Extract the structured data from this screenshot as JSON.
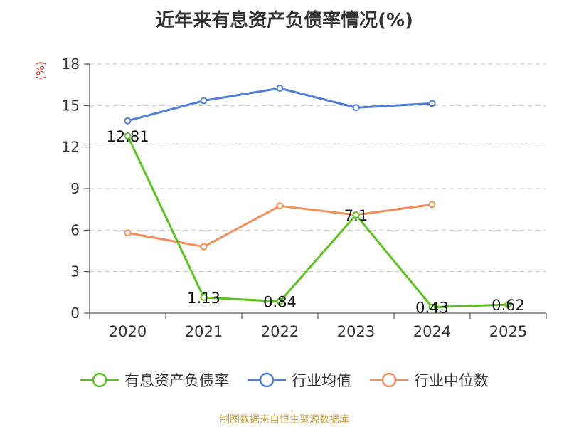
{
  "title": "近年来有息资产负债率情况(%)",
  "unit": "(%)",
  "source": "制图数据来自恒生聚源数据库",
  "colors": {
    "debt_ratio": "#5cc31e",
    "industry_avg": "#4f7fd8",
    "industry_median": "#f48f5c",
    "grid": "#c8c8c8",
    "axis": "#333333"
  },
  "chart_data": {
    "type": "line",
    "x": [
      "2020",
      "2021",
      "2022",
      "2023",
      "2024",
      "2025"
    ],
    "ylim": [
      0,
      18
    ],
    "yticks": [
      0,
      3,
      6,
      9,
      12,
      15,
      18
    ],
    "grid": true,
    "legend_position": "bottom",
    "series": [
      {
        "name": "有息资产负债率",
        "values": [
          12.81,
          1.13,
          0.84,
          7.1,
          0.43,
          0.62
        ],
        "labels": [
          "12.81",
          "1.13",
          "0.84",
          "7.1",
          "0.43",
          "0.62"
        ],
        "color": "#5cc31e"
      },
      {
        "name": "行业均值",
        "values": [
          13.9,
          15.35,
          16.25,
          14.85,
          15.15,
          null
        ],
        "color": "#4f7fd8"
      },
      {
        "name": "行业中位数",
        "values": [
          5.8,
          4.8,
          7.75,
          7.1,
          7.85,
          null
        ],
        "color": "#f48f5c"
      }
    ]
  }
}
